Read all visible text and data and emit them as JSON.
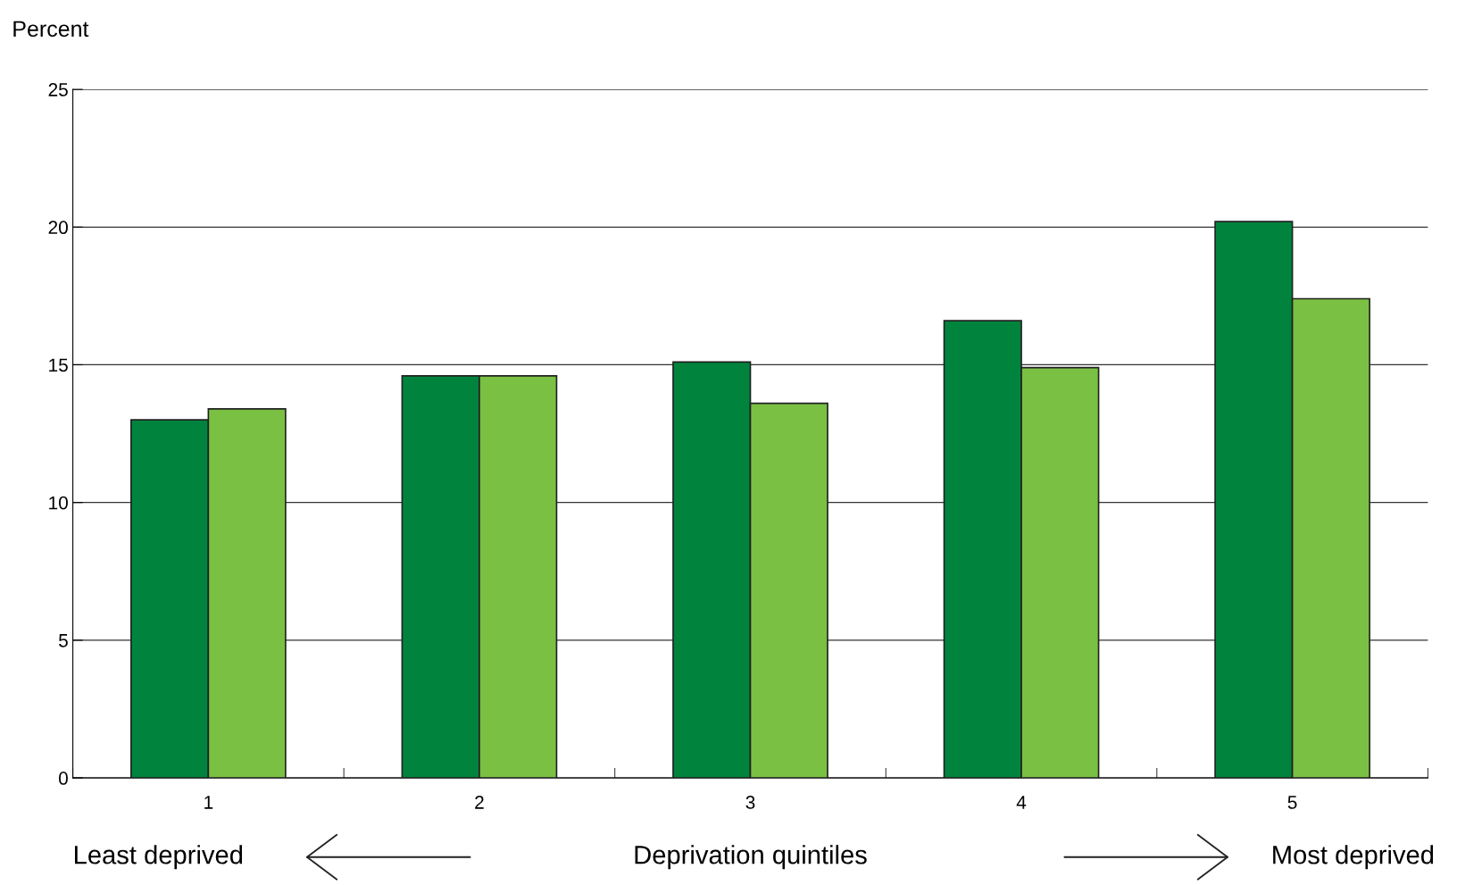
{
  "chart_data": {
    "type": "bar",
    "ylabel": "Percent",
    "xlabel": "Deprivation quintiles",
    "categories": [
      "1",
      "2",
      "3",
      "4",
      "5"
    ],
    "series": [
      {
        "color": "#00843d",
        "values": [
          13.0,
          14.6,
          15.1,
          16.6,
          20.2
        ]
      },
      {
        "color": "#7ac143",
        "values": [
          13.4,
          14.6,
          13.6,
          14.9,
          17.4
        ]
      }
    ],
    "ylim": [
      0,
      25
    ],
    "yticks": [
      0,
      5,
      10,
      15,
      20,
      25
    ],
    "grid": "y",
    "annotations": [
      "Least deprived",
      "Most deprived"
    ]
  }
}
